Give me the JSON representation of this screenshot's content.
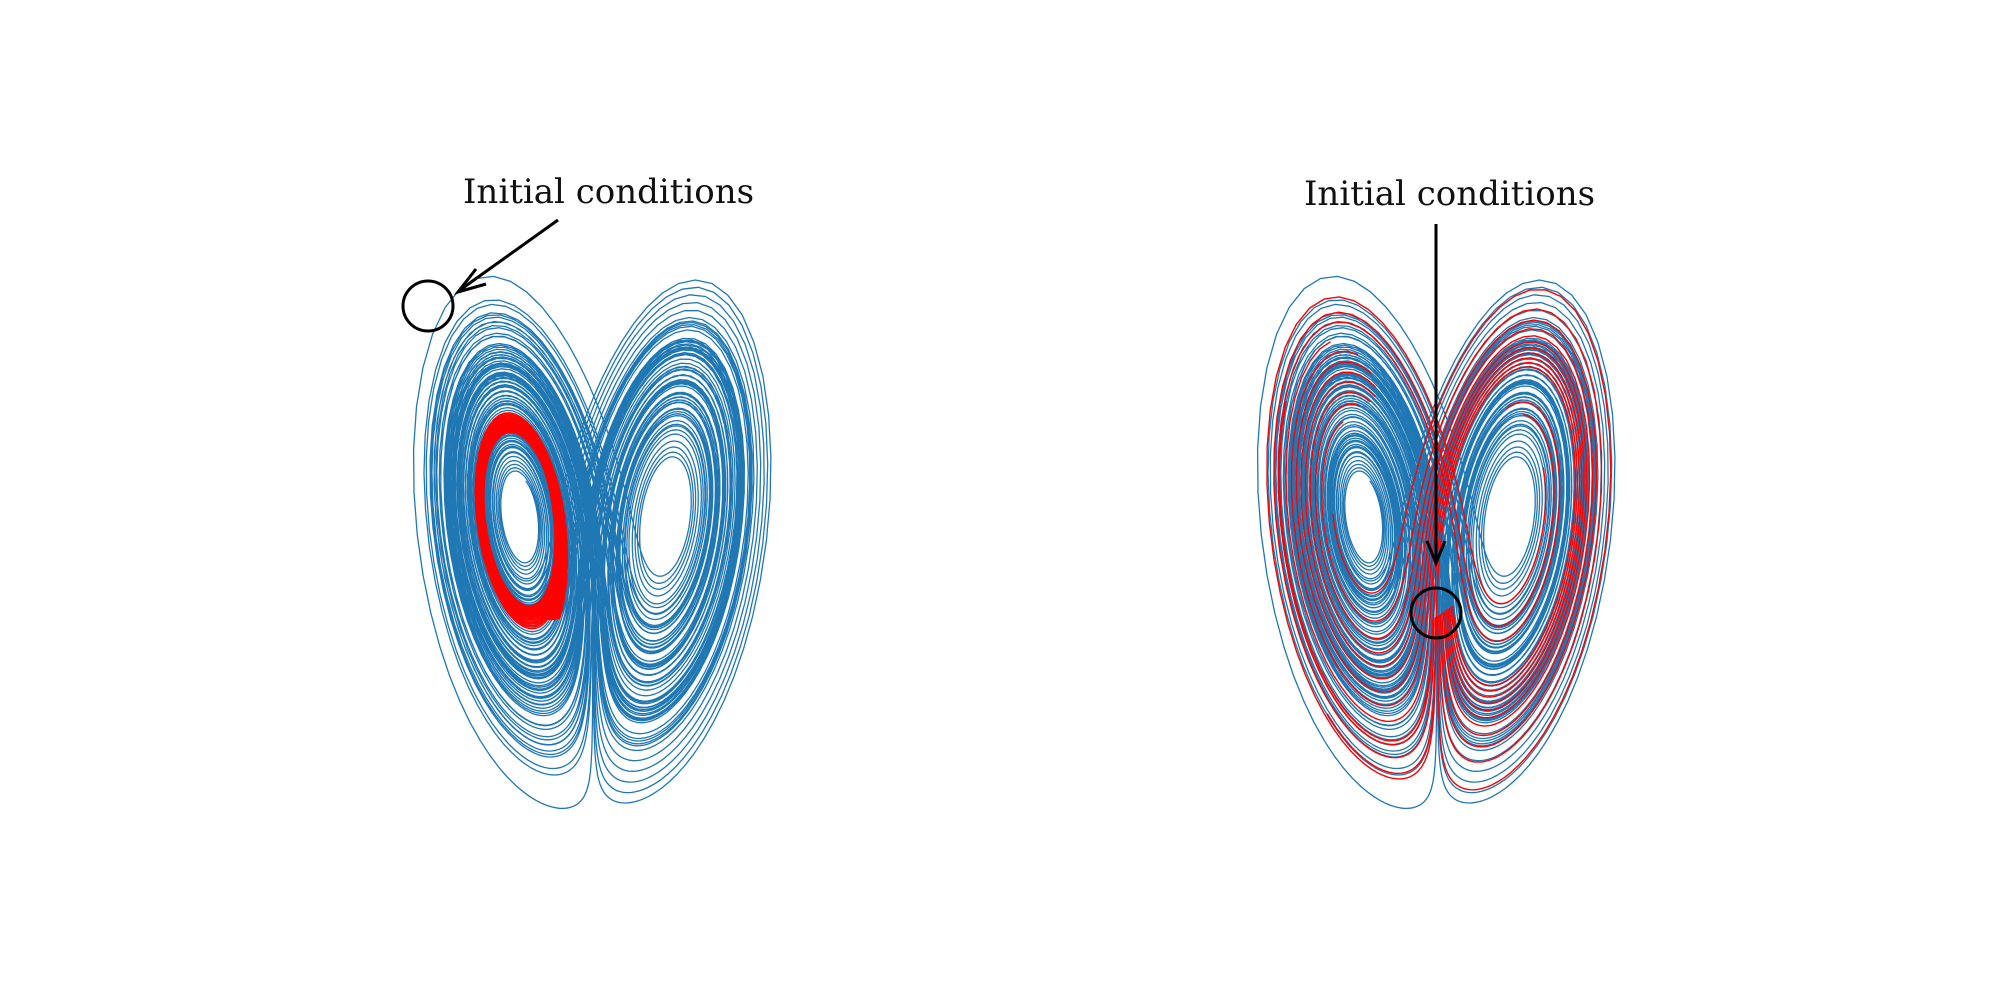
{
  "annotations": [
    {
      "label": "Initial conditions"
    },
    {
      "label": "Initial conditions"
    }
  ],
  "colors": {
    "attractor": "#1f77b4",
    "trajectories": "#ff0000",
    "marker": "#000000",
    "background": "#ffffff"
  }
}
